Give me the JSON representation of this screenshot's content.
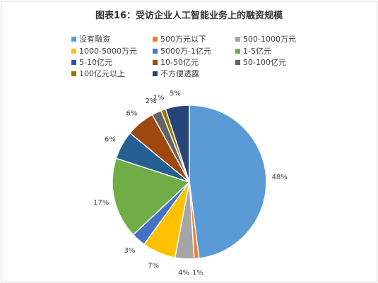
{
  "chart_data": {
    "type": "pie",
    "title": "图表16：受访企业人工智能业务上的融资规模",
    "categories": [
      "没有融资",
      "500万元以下",
      "500-1000万元",
      "1000-5000万元",
      "5000万-1亿元",
      "1-5亿元",
      "5-10亿元",
      "10-50亿元",
      "50-100亿元",
      "100亿元以上",
      "不方便透露"
    ],
    "values": [
      48,
      1,
      4,
      7,
      3,
      17,
      6,
      6,
      2,
      1,
      5
    ],
    "labels": [
      "48%",
      "1%",
      "4%",
      "7%",
      "3%",
      "17%",
      "6%",
      "6%",
      "2%",
      "1%",
      "5%"
    ],
    "colors": [
      "#5b9bd5",
      "#ed7d31",
      "#a5a5a5",
      "#ffc000",
      "#4472c4",
      "#70ad47",
      "#255e91",
      "#9e480e",
      "#636363",
      "#997300",
      "#264478"
    ],
    "legend_position": "top",
    "start_angle": "12 o'clock",
    "direction": "clockwise"
  }
}
